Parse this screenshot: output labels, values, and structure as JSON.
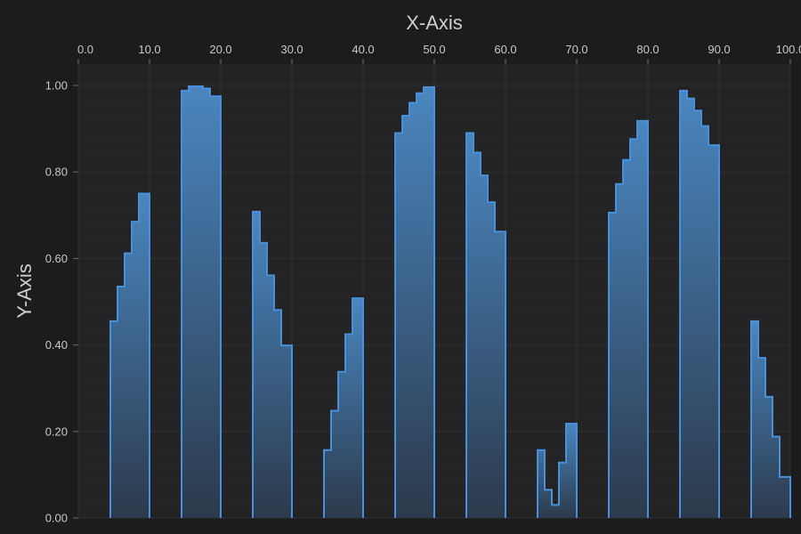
{
  "chart_data": {
    "type": "area",
    "title": "",
    "xlabel": "X-Axis",
    "ylabel": "Y-Axis",
    "xlim": [
      0,
      100
    ],
    "ylim": [
      0,
      1
    ],
    "x_ticks": [
      "0.0",
      "10.0",
      "20.0",
      "30.0",
      "40.0",
      "50.0",
      "60.0",
      "70.0",
      "80.0",
      "90.0",
      "100.0"
    ],
    "y_ticks": [
      "0.00",
      "0.20",
      "0.40",
      "0.60",
      "0.80",
      "1.00"
    ],
    "x_axis_position": "top",
    "y_axis_position": "left",
    "grid": true,
    "line_shape": "step",
    "colors": {
      "background": "#1c1c1e",
      "plot_background": "#232325",
      "stroke": "#4a90d9",
      "fill_top": "#4a86c0",
      "fill_bottom": "#2c3a4c",
      "grid_major": "#2f3034",
      "grid_minor": "#27282b",
      "text": "#c8c8c8"
    },
    "segments": [
      {
        "x": [
          4.5,
          5.5,
          6.5,
          7.5,
          8.5,
          9.5,
          10
        ],
        "y": [
          0.455,
          0.535,
          0.612,
          0.685,
          0.75,
          0.75,
          0.75
        ]
      },
      {
        "x": [
          14.5,
          15.5,
          16.5,
          17.5,
          18.5,
          19.5,
          20
        ],
        "y": [
          0.988,
          0.998,
          0.998,
          0.993,
          0.975,
          0.975,
          0.975
        ]
      },
      {
        "x": [
          24.5,
          25.5,
          26.5,
          27.5,
          28.5,
          29.5,
          30
        ],
        "y": [
          0.708,
          0.636,
          0.561,
          0.481,
          0.399,
          0.399,
          0.399
        ]
      },
      {
        "x": [
          34.5,
          35.5,
          36.5,
          37.5,
          38.5,
          39.5,
          40
        ],
        "y": [
          0.157,
          0.248,
          0.338,
          0.425,
          0.508,
          0.508,
          0.508
        ]
      },
      {
        "x": [
          44.5,
          45.5,
          46.5,
          47.5,
          48.5,
          49.5,
          50
        ],
        "y": [
          0.89,
          0.93,
          0.96,
          0.982,
          0.996,
          0.996,
          0.996
        ]
      },
      {
        "x": [
          54.5,
          55.5,
          56.5,
          57.5,
          58.5,
          59.5,
          60
        ],
        "y": [
          0.89,
          0.845,
          0.792,
          0.73,
          0.662,
          0.662,
          0.662
        ]
      },
      {
        "x": [
          64.5,
          65.5,
          66.5,
          67.5,
          68.5,
          69.5,
          70
        ],
        "y": [
          0.157,
          0.065,
          0.03,
          0.128,
          0.218,
          0.218,
          0.218
        ]
      },
      {
        "x": [
          74.5,
          75.5,
          76.5,
          77.5,
          78.5,
          79.5,
          80
        ],
        "y": [
          0.706,
          0.772,
          0.828,
          0.876,
          0.918,
          0.918,
          0.918
        ]
      },
      {
        "x": [
          84.5,
          85.5,
          86.5,
          87.5,
          88.5,
          89.5,
          90
        ],
        "y": [
          0.988,
          0.97,
          0.942,
          0.906,
          0.862,
          0.862,
          0.862
        ]
      },
      {
        "x": [
          94.5,
          95.5,
          96.5,
          97.5,
          98.5,
          99.5,
          100
        ],
        "y": [
          0.455,
          0.37,
          0.28,
          0.188,
          0.095,
          0.095,
          0.095
        ]
      }
    ]
  }
}
